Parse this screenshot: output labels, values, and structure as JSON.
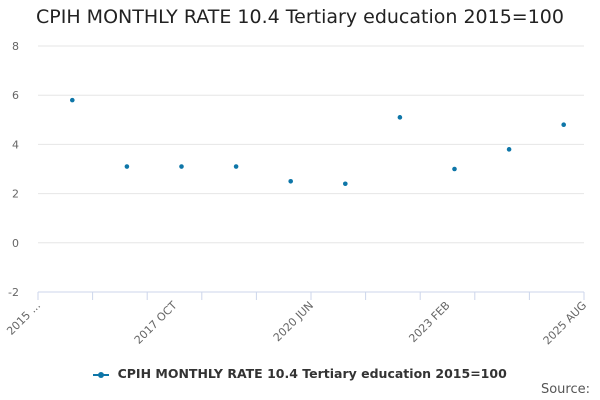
{
  "source_label": "Source:",
  "colors": {
    "series": "#0e76a8",
    "grid": "#e6e6e6",
    "axis": "#ccd6eb",
    "tick_text": "#666666"
  },
  "chart_data": {
    "type": "scatter",
    "title": "CPIH MONTHLY RATE 10.4 Tertiary education 2015=100",
    "xlabel": "",
    "ylabel": "",
    "ylim": [
      -2,
      8
    ],
    "y_ticks": [
      -2,
      0,
      2,
      4,
      6,
      8
    ],
    "x_tick_labels": [
      "2015 ...",
      "2017 OCT",
      "2020 JUN",
      "2023 FEB",
      "2025 AUG"
    ],
    "legend_position": "bottom",
    "grid": true,
    "series": [
      {
        "name": "CPIH MONTHLY RATE 10.4 Tertiary education 2015=100",
        "values": [
          5.8,
          3.1,
          3.1,
          3.1,
          2.5,
          2.4,
          5.1,
          3.0,
          3.8,
          4.8
        ]
      }
    ]
  }
}
